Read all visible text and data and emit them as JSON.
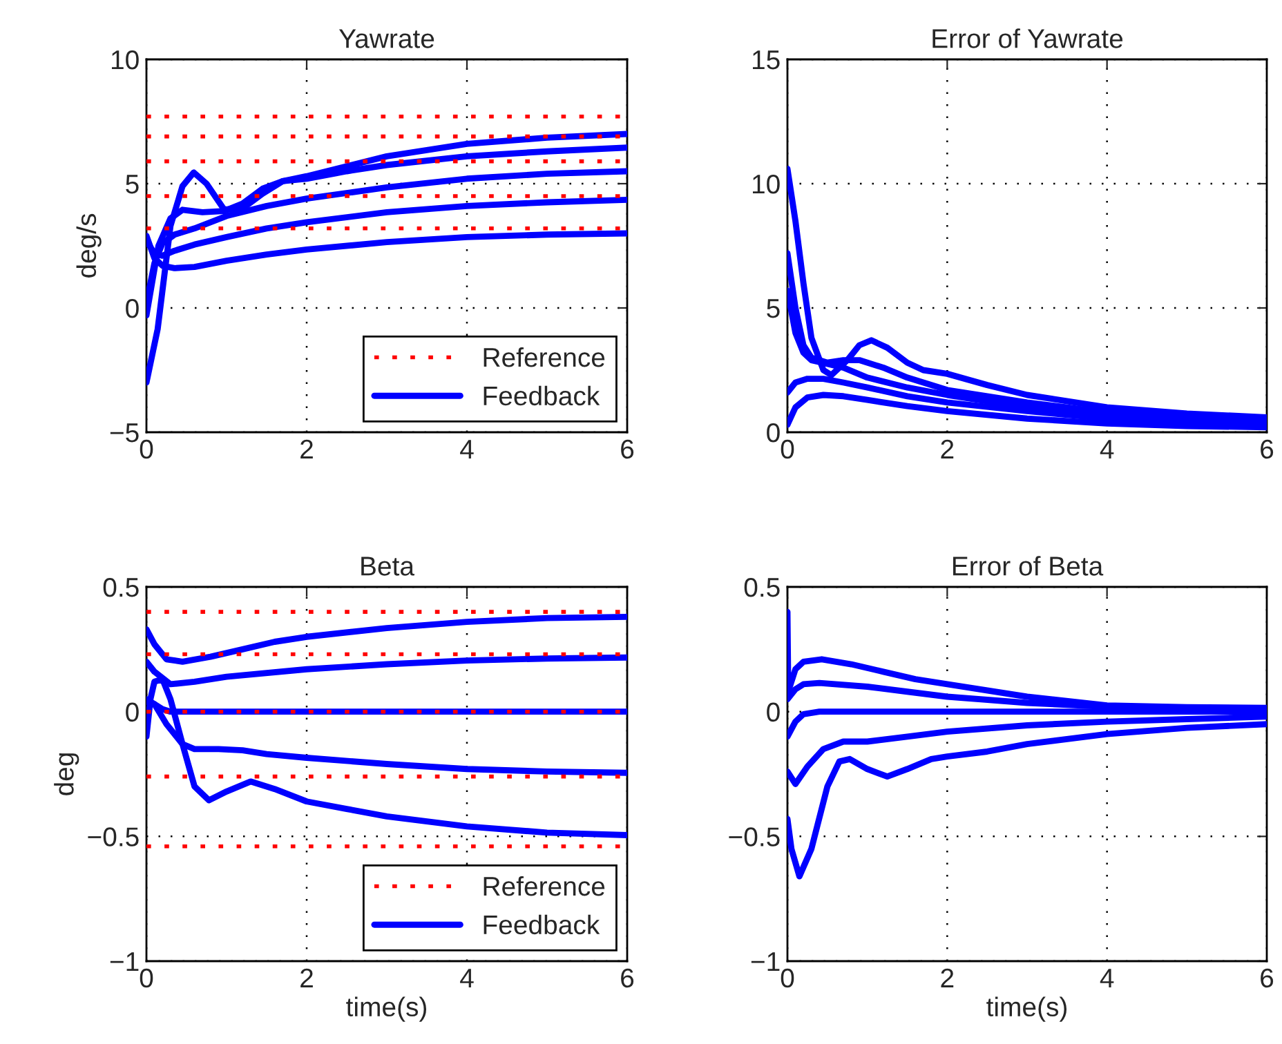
{
  "chart_data": [
    {
      "type": "line",
      "title": "Yawrate",
      "ylabel": "deg/s",
      "xlim": [
        0,
        6
      ],
      "xticks": [
        0,
        2,
        4,
        6
      ],
      "ylim": [
        -5,
        10
      ],
      "yticks": [
        {
          "value": -5,
          "label": "−5"
        },
        0,
        5,
        10
      ],
      "grid": true,
      "legend": "bottom right",
      "series": [
        {
          "name": "Reference",
          "color": "#ff0000",
          "line_style": "dotted",
          "x": [
            0,
            6
          ],
          "values": [
            7.7,
            7.7
          ]
        },
        {
          "color": "#ff0000",
          "line_style": "dotted",
          "x": [
            0,
            6
          ],
          "values": [
            6.9,
            6.9
          ]
        },
        {
          "color": "#ff0000",
          "line_style": "dotted",
          "x": [
            0,
            6
          ],
          "values": [
            5.9,
            5.9
          ]
        },
        {
          "color": "#ff0000",
          "line_style": "dotted",
          "x": [
            0,
            6
          ],
          "values": [
            4.5,
            4.5
          ]
        },
        {
          "color": "#ff0000",
          "line_style": "dotted",
          "x": [
            0,
            6
          ],
          "values": [
            3.2,
            3.2
          ]
        },
        {
          "name": "Feedback",
          "color": "#0000ff",
          "line_style": "solid",
          "x": [
            0,
            0.14,
            0.3,
            0.45,
            0.59,
            0.75,
            0.97,
            1.2,
            1.45,
            1.7,
            2,
            2.5,
            3,
            4,
            5,
            6
          ],
          "values": [
            -3.0,
            -0.85,
            3.3,
            4.9,
            5.45,
            5.0,
            3.96,
            4.0,
            4.6,
            5.1,
            5.3,
            5.7,
            6.1,
            6.6,
            6.85,
            7.0
          ]
        },
        {
          "color": "#0000ff",
          "line_style": "solid",
          "x": [
            0,
            0.15,
            0.3,
            0.45,
            0.7,
            0.97,
            1.2,
            1.45,
            1.7,
            2,
            2.5,
            3,
            4,
            5,
            6
          ],
          "values": [
            -0.3,
            2.5,
            3.6,
            3.95,
            3.85,
            3.9,
            4.2,
            4.8,
            5.1,
            5.2,
            5.5,
            5.75,
            6.1,
            6.3,
            6.45
          ]
        },
        {
          "color": "#0000ff",
          "line_style": "solid",
          "x": [
            0,
            0.1,
            0.2,
            0.35,
            0.6,
            1.0,
            1.5,
            2,
            3,
            4,
            5,
            6
          ],
          "values": [
            0.2,
            1.8,
            2.6,
            2.95,
            3.2,
            3.7,
            4.1,
            4.4,
            4.85,
            5.2,
            5.4,
            5.5
          ]
        },
        {
          "color": "#0000ff",
          "line_style": "solid",
          "x": [
            0,
            0.1,
            0.2,
            0.35,
            0.6,
            1.0,
            1.5,
            2,
            3,
            4,
            5,
            6
          ],
          "values": [
            2.7,
            2.2,
            2.1,
            2.3,
            2.55,
            2.85,
            3.2,
            3.45,
            3.85,
            4.1,
            4.25,
            4.35
          ]
        },
        {
          "color": "#0000ff",
          "line_style": "solid",
          "x": [
            0,
            0.1,
            0.2,
            0.35,
            0.6,
            1.0,
            1.5,
            2,
            3,
            4,
            5,
            6
          ],
          "values": [
            2.9,
            2.0,
            1.7,
            1.6,
            1.65,
            1.9,
            2.15,
            2.35,
            2.65,
            2.85,
            2.95,
            3.0
          ]
        }
      ]
    },
    {
      "type": "line",
      "title": "Error of Yawrate",
      "xlim": [
        0,
        6
      ],
      "xticks": [
        0,
        2,
        4,
        6
      ],
      "ylim": [
        0,
        15
      ],
      "yticks": [
        0,
        5,
        10,
        15
      ],
      "grid": true,
      "series": [
        {
          "color": "#0000ff",
          "x": [
            0,
            0.1,
            0.2,
            0.3,
            0.45,
            0.55,
            0.75,
            0.9,
            1.05,
            1.25,
            1.5,
            1.7,
            2,
            2.5,
            3,
            4,
            5,
            6
          ],
          "values": [
            10.6,
            8.5,
            6.0,
            3.8,
            2.5,
            2.3,
            2.9,
            3.5,
            3.7,
            3.4,
            2.8,
            2.5,
            2.35,
            1.9,
            1.5,
            1.0,
            0.75,
            0.6
          ]
        },
        {
          "color": "#0000ff",
          "x": [
            0,
            0.1,
            0.2,
            0.3,
            0.5,
            0.7,
            0.9,
            1.2,
            1.5,
            2,
            3,
            4,
            5,
            6
          ],
          "values": [
            7.2,
            5.0,
            3.5,
            3.0,
            2.8,
            2.9,
            2.9,
            2.6,
            2.2,
            1.7,
            1.2,
            0.8,
            0.6,
            0.45
          ]
        },
        {
          "color": "#0000ff",
          "x": [
            0,
            0.1,
            0.2,
            0.3,
            0.5,
            0.7,
            1.0,
            1.5,
            2,
            3,
            4,
            5,
            6
          ],
          "values": [
            5.7,
            4.0,
            3.2,
            2.9,
            2.75,
            2.6,
            2.2,
            1.8,
            1.5,
            1.0,
            0.7,
            0.5,
            0.4
          ]
        },
        {
          "color": "#0000ff",
          "x": [
            0,
            0.1,
            0.25,
            0.45,
            0.7,
            1.0,
            1.5,
            2,
            3,
            4,
            5,
            6
          ],
          "values": [
            1.6,
            2.0,
            2.15,
            2.15,
            2.0,
            1.8,
            1.45,
            1.2,
            0.85,
            0.55,
            0.4,
            0.3
          ]
        },
        {
          "color": "#0000ff",
          "x": [
            0,
            0.1,
            0.25,
            0.45,
            0.7,
            1.0,
            1.5,
            2,
            3,
            4,
            5,
            6
          ],
          "values": [
            0.3,
            1.0,
            1.4,
            1.5,
            1.45,
            1.3,
            1.05,
            0.85,
            0.55,
            0.35,
            0.25,
            0.2
          ]
        }
      ]
    },
    {
      "type": "line",
      "title": "Beta",
      "xlabel": "time(s)",
      "ylabel": "deg",
      "xlim": [
        0,
        6
      ],
      "xticks": [
        0,
        2,
        4,
        6
      ],
      "ylim": [
        -1,
        0.5
      ],
      "yticks": [
        {
          "value": -1,
          "label": "−1"
        },
        {
          "value": -0.5,
          "label": "−0.5"
        },
        0,
        0.5
      ],
      "grid": true,
      "legend": "bottom right",
      "series": [
        {
          "name": "Reference",
          "color": "#ff0000",
          "line_style": "dotted",
          "x": [
            0,
            6
          ],
          "values": [
            0.4,
            0.4
          ]
        },
        {
          "color": "#ff0000",
          "line_style": "dotted",
          "x": [
            0,
            6
          ],
          "values": [
            0.23,
            0.23
          ]
        },
        {
          "color": "#ff0000",
          "line_style": "dotted",
          "x": [
            0,
            6
          ],
          "values": [
            0,
            0
          ]
        },
        {
          "color": "#ff0000",
          "line_style": "dotted",
          "x": [
            0,
            6
          ],
          "values": [
            -0.26,
            -0.26
          ]
        },
        {
          "color": "#ff0000",
          "line_style": "dotted",
          "x": [
            0,
            6
          ],
          "values": [
            -0.54,
            -0.54
          ]
        },
        {
          "name": "Feedback",
          "color": "#0000ff",
          "line_style": "solid",
          "x": [
            0,
            0.1,
            0.25,
            0.45,
            0.8,
            1.2,
            1.6,
            2,
            3,
            4,
            5,
            6
          ],
          "values": [
            0.33,
            0.27,
            0.21,
            0.2,
            0.22,
            0.25,
            0.28,
            0.3,
            0.335,
            0.36,
            0.375,
            0.38
          ]
        },
        {
          "color": "#0000ff",
          "line_style": "solid",
          "x": [
            0,
            0.1,
            0.3,
            0.6,
            1,
            2,
            3,
            4,
            5,
            6
          ],
          "values": [
            0.2,
            0.16,
            0.11,
            0.12,
            0.14,
            0.17,
            0.19,
            0.205,
            0.213,
            0.217
          ]
        },
        {
          "color": "#0000ff",
          "line_style": "solid",
          "x": [
            0,
            0.1,
            0.2,
            0.3,
            6
          ],
          "values": [
            0.04,
            0.03,
            0.01,
            0,
            0
          ]
        },
        {
          "color": "#0000ff",
          "line_style": "solid",
          "x": [
            0,
            0.1,
            0.25,
            0.45,
            0.6,
            0.9,
            1.2,
            1.5,
            2,
            3,
            4,
            5,
            6
          ],
          "values": [
            0.05,
            0.03,
            -0.05,
            -0.13,
            -0.15,
            -0.15,
            -0.155,
            -0.17,
            -0.185,
            -0.21,
            -0.23,
            -0.24,
            -0.245
          ]
        },
        {
          "color": "#0000ff",
          "line_style": "solid",
          "x": [
            0,
            0.05,
            0.1,
            0.2,
            0.3,
            0.45,
            0.6,
            0.78,
            1.0,
            1.3,
            1.6,
            2,
            2.5,
            3,
            4,
            5,
            6
          ],
          "values": [
            -0.1,
            0.05,
            0.12,
            0.13,
            0.05,
            -0.13,
            -0.3,
            -0.355,
            -0.32,
            -0.28,
            -0.31,
            -0.36,
            -0.39,
            -0.42,
            -0.46,
            -0.485,
            -0.495
          ]
        }
      ]
    },
    {
      "type": "line",
      "title": "Error of Beta",
      "xlabel": "time(s)",
      "xlim": [
        0,
        6
      ],
      "xticks": [
        0,
        2,
        4,
        6
      ],
      "ylim": [
        -1,
        0.5
      ],
      "yticks": [
        {
          "value": -1,
          "label": "−1"
        },
        {
          "value": -0.5,
          "label": "−0.5"
        },
        0,
        0.5
      ],
      "grid": true,
      "series": [
        {
          "color": "#0000ff",
          "x": [
            0,
            0.01,
            0.1,
            0.2,
            0.43,
            0.8,
            1.2,
            1.6,
            2,
            3,
            4,
            5,
            6
          ],
          "values": [
            0.4,
            0.08,
            0.17,
            0.2,
            0.21,
            0.19,
            0.16,
            0.13,
            0.11,
            0.06,
            0.025,
            0.018,
            0.015
          ]
        },
        {
          "color": "#0000ff",
          "x": [
            0,
            0.1,
            0.2,
            0.4,
            1,
            1.5,
            2,
            3,
            4,
            5,
            6
          ],
          "values": [
            0.05,
            0.09,
            0.11,
            0.115,
            0.1,
            0.08,
            0.06,
            0.035,
            0.02,
            0.012,
            0.008
          ]
        },
        {
          "color": "#0000ff",
          "x": [
            0,
            0.1,
            0.2,
            0.4,
            6
          ],
          "values": [
            -0.1,
            -0.04,
            -0.01,
            0,
            0
          ]
        },
        {
          "color": "#0000ff",
          "x": [
            0,
            0.1,
            0.25,
            0.45,
            0.7,
            1,
            1.5,
            2,
            3,
            4,
            5,
            6
          ],
          "values": [
            -0.24,
            -0.29,
            -0.22,
            -0.15,
            -0.12,
            -0.12,
            -0.1,
            -0.08,
            -0.055,
            -0.04,
            -0.03,
            -0.02
          ]
        },
        {
          "color": "#0000ff",
          "x": [
            0,
            0.05,
            0.15,
            0.3,
            0.5,
            0.65,
            0.78,
            1.0,
            1.25,
            1.5,
            1.8,
            2,
            2.5,
            3,
            4,
            5,
            6
          ],
          "values": [
            -0.43,
            -0.55,
            -0.66,
            -0.55,
            -0.3,
            -0.2,
            -0.19,
            -0.23,
            -0.26,
            -0.23,
            -0.19,
            -0.18,
            -0.16,
            -0.13,
            -0.09,
            -0.065,
            -0.05
          ]
        }
      ]
    }
  ]
}
